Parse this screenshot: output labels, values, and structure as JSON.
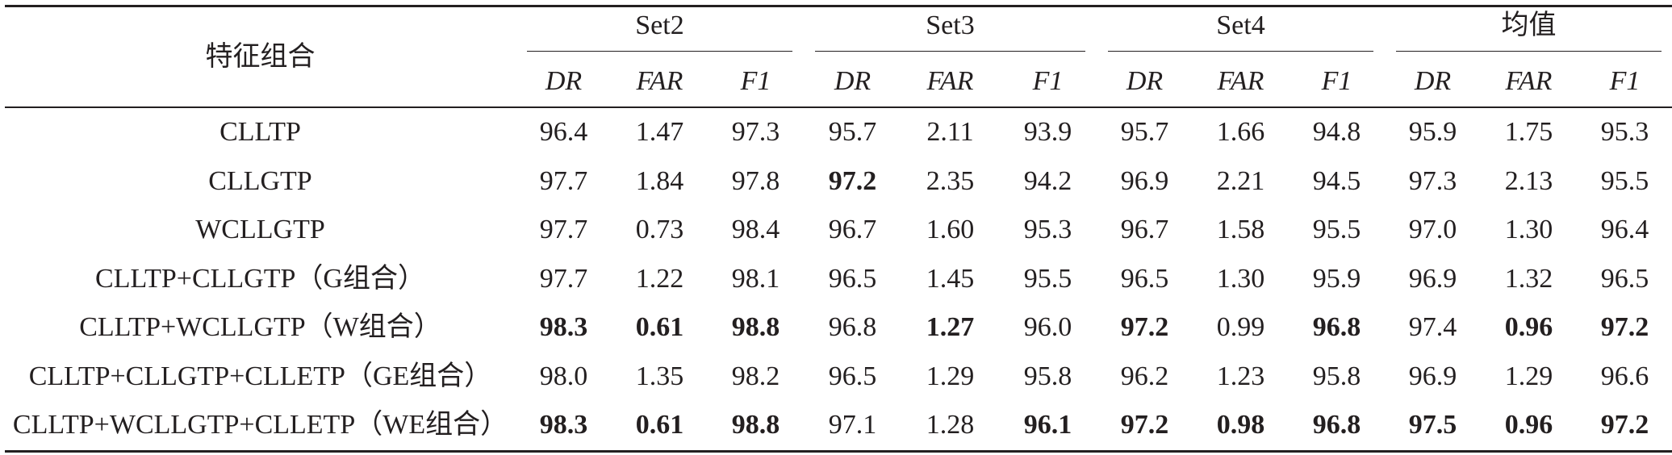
{
  "table": {
    "corner_label": "特征组合",
    "groups": [
      {
        "label": "Set2"
      },
      {
        "label": "Set3"
      },
      {
        "label": "Set4"
      },
      {
        "label": "均值"
      }
    ],
    "metrics": [
      "DR",
      "FAR",
      "F1"
    ],
    "rows": [
      {
        "label": "CLLTP",
        "cells": [
          {
            "v": "96.4",
            "bold": false
          },
          {
            "v": "1.47",
            "bold": false
          },
          {
            "v": "97.3",
            "bold": false
          },
          {
            "v": "95.7",
            "bold": false
          },
          {
            "v": "2.11",
            "bold": false
          },
          {
            "v": "93.9",
            "bold": false
          },
          {
            "v": "95.7",
            "bold": false
          },
          {
            "v": "1.66",
            "bold": false
          },
          {
            "v": "94.8",
            "bold": false
          },
          {
            "v": "95.9",
            "bold": false
          },
          {
            "v": "1.75",
            "bold": false
          },
          {
            "v": "95.3",
            "bold": false
          }
        ]
      },
      {
        "label": "CLLGTP",
        "cells": [
          {
            "v": "97.7",
            "bold": false
          },
          {
            "v": "1.84",
            "bold": false
          },
          {
            "v": "97.8",
            "bold": false
          },
          {
            "v": "97.2",
            "bold": true
          },
          {
            "v": "2.35",
            "bold": false
          },
          {
            "v": "94.2",
            "bold": false
          },
          {
            "v": "96.9",
            "bold": false
          },
          {
            "v": "2.21",
            "bold": false
          },
          {
            "v": "94.5",
            "bold": false
          },
          {
            "v": "97.3",
            "bold": false
          },
          {
            "v": "2.13",
            "bold": false
          },
          {
            "v": "95.5",
            "bold": false
          }
        ]
      },
      {
        "label": "WCLLGTP",
        "cells": [
          {
            "v": "97.7",
            "bold": false
          },
          {
            "v": "0.73",
            "bold": false
          },
          {
            "v": "98.4",
            "bold": false
          },
          {
            "v": "96.7",
            "bold": false
          },
          {
            "v": "1.60",
            "bold": false
          },
          {
            "v": "95.3",
            "bold": false
          },
          {
            "v": "96.7",
            "bold": false
          },
          {
            "v": "1.58",
            "bold": false
          },
          {
            "v": "95.5",
            "bold": false
          },
          {
            "v": "97.0",
            "bold": false
          },
          {
            "v": "1.30",
            "bold": false
          },
          {
            "v": "96.4",
            "bold": false
          }
        ]
      },
      {
        "label": "CLLTP+CLLGTP（G组合）",
        "cells": [
          {
            "v": "97.7",
            "bold": false
          },
          {
            "v": "1.22",
            "bold": false
          },
          {
            "v": "98.1",
            "bold": false
          },
          {
            "v": "96.5",
            "bold": false
          },
          {
            "v": "1.45",
            "bold": false
          },
          {
            "v": "95.5",
            "bold": false
          },
          {
            "v": "96.5",
            "bold": false
          },
          {
            "v": "1.30",
            "bold": false
          },
          {
            "v": "95.9",
            "bold": false
          },
          {
            "v": "96.9",
            "bold": false
          },
          {
            "v": "1.32",
            "bold": false
          },
          {
            "v": "96.5",
            "bold": false
          }
        ]
      },
      {
        "label": "CLLTP+WCLLGTP（W组合）",
        "cells": [
          {
            "v": "98.3",
            "bold": true
          },
          {
            "v": "0.61",
            "bold": true
          },
          {
            "v": "98.8",
            "bold": true
          },
          {
            "v": "96.8",
            "bold": false
          },
          {
            "v": "1.27",
            "bold": true
          },
          {
            "v": "96.0",
            "bold": false
          },
          {
            "v": "97.2",
            "bold": true
          },
          {
            "v": "0.99",
            "bold": false
          },
          {
            "v": "96.8",
            "bold": true
          },
          {
            "v": "97.4",
            "bold": false
          },
          {
            "v": "0.96",
            "bold": true
          },
          {
            "v": "97.2",
            "bold": true
          }
        ]
      },
      {
        "label": "CLLTP+CLLGTP+CLLETP（GE组合）",
        "cells": [
          {
            "v": "98.0",
            "bold": false
          },
          {
            "v": "1.35",
            "bold": false
          },
          {
            "v": "98.2",
            "bold": false
          },
          {
            "v": "96.5",
            "bold": false
          },
          {
            "v": "1.29",
            "bold": false
          },
          {
            "v": "95.8",
            "bold": false
          },
          {
            "v": "96.2",
            "bold": false
          },
          {
            "v": "1.23",
            "bold": false
          },
          {
            "v": "95.8",
            "bold": false
          },
          {
            "v": "96.9",
            "bold": false
          },
          {
            "v": "1.29",
            "bold": false
          },
          {
            "v": "96.6",
            "bold": false
          }
        ]
      },
      {
        "label": "CLLTP+WCLLGTP+CLLETP（WE组合）",
        "cells": [
          {
            "v": "98.3",
            "bold": true
          },
          {
            "v": "0.61",
            "bold": true
          },
          {
            "v": "98.8",
            "bold": true
          },
          {
            "v": "97.1",
            "bold": false
          },
          {
            "v": "1.28",
            "bold": false
          },
          {
            "v": "96.1",
            "bold": true
          },
          {
            "v": "97.2",
            "bold": true
          },
          {
            "v": "0.98",
            "bold": true
          },
          {
            "v": "96.8",
            "bold": true
          },
          {
            "v": "97.5",
            "bold": true
          },
          {
            "v": "0.96",
            "bold": true
          },
          {
            "v": "97.2",
            "bold": true
          }
        ]
      }
    ]
  }
}
